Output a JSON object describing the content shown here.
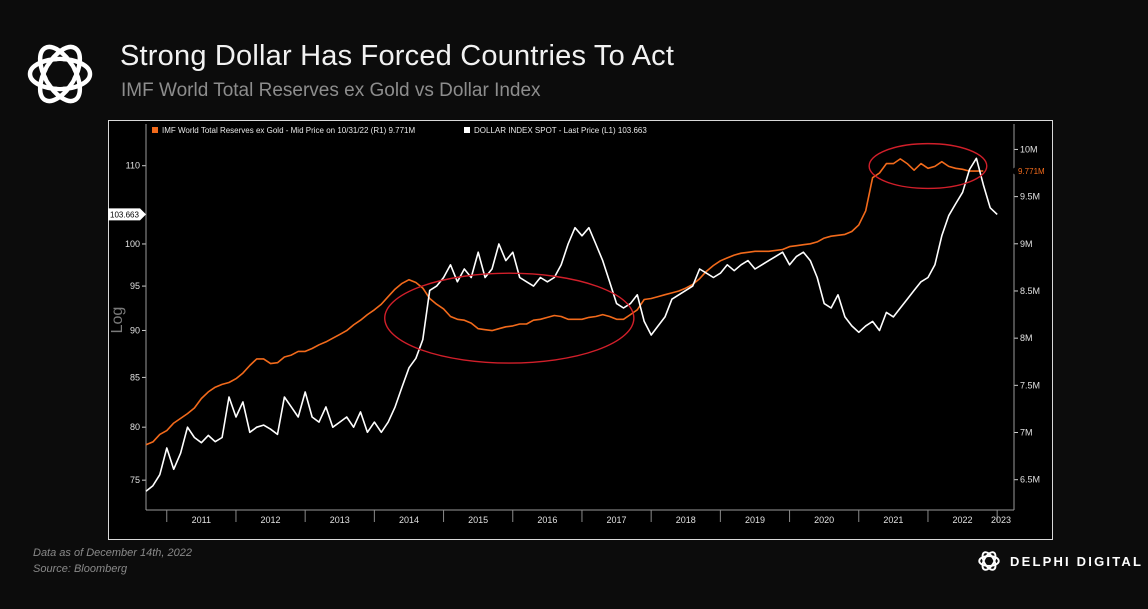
{
  "header": {
    "title": "Strong Dollar Has Forced Countries To Act",
    "subtitle": "IMF World Total Reserves ex Gold vs Dollar Index"
  },
  "footnote": {
    "date_note": "Data as of December  14th, 2022",
    "source_note": "Source: Bloomberg"
  },
  "brand": {
    "name": "DELPHI DIGITAL"
  },
  "chart_data": {
    "type": "line",
    "title": "",
    "legend_position": "top-left",
    "grid": false,
    "left_axis": {
      "label": "Log",
      "ticks": [
        75,
        80,
        85,
        90,
        95,
        100,
        110
      ],
      "tick_labels": [
        "75",
        "80",
        "85",
        "90",
        "95",
        "100",
        "110"
      ],
      "range": [
        72.5,
        113.5
      ],
      "scale": "log"
    },
    "right_axis": {
      "ticks": [
        6.5,
        7,
        7.5,
        8,
        8.5,
        9,
        9.5,
        10
      ],
      "tick_labels": [
        "6.5M",
        "7M",
        "7.5M",
        "8M",
        "8.5M",
        "9M",
        "9.5M",
        "10M"
      ],
      "range": [
        6.2,
        10.1
      ]
    },
    "x_axis": {
      "range": [
        2010.7,
        2023.2
      ],
      "years": [
        2011,
        2012,
        2013,
        2014,
        2015,
        2016,
        2017,
        2018,
        2019,
        2020,
        2021,
        2022,
        2023
      ],
      "year_labels": [
        "2011",
        "2012",
        "2013",
        "2014",
        "2015",
        "2016",
        "2017",
        "2018",
        "2019",
        "2020",
        "2021",
        "2022",
        "2023"
      ]
    },
    "series": [
      {
        "name": "IMF World Total Reserves ex Gold - Mid Price on 10/31/22 (R1) 9.771M",
        "axis": "right",
        "color": "#f26a1b",
        "last_label": "9.771M",
        "x": [
          2010.7,
          2010.8,
          2010.9,
          2011.0,
          2011.1,
          2011.2,
          2011.3,
          2011.4,
          2011.5,
          2011.6,
          2011.7,
          2011.8,
          2011.9,
          2012.0,
          2012.1,
          2012.2,
          2012.3,
          2012.4,
          2012.5,
          2012.6,
          2012.7,
          2012.8,
          2012.9,
          2013.0,
          2013.1,
          2013.2,
          2013.3,
          2013.4,
          2013.5,
          2013.6,
          2013.7,
          2013.8,
          2013.9,
          2014.0,
          2014.1,
          2014.2,
          2014.3,
          2014.4,
          2014.5,
          2014.6,
          2014.7,
          2014.8,
          2014.9,
          2015.0,
          2015.1,
          2015.2,
          2015.3,
          2015.4,
          2015.5,
          2015.6,
          2015.7,
          2015.8,
          2015.9,
          2016.0,
          2016.1,
          2016.2,
          2016.3,
          2016.4,
          2016.5,
          2016.6,
          2016.7,
          2016.8,
          2016.9,
          2017.0,
          2017.1,
          2017.2,
          2017.3,
          2017.4,
          2017.5,
          2017.6,
          2017.7,
          2017.8,
          2017.9,
          2018.0,
          2018.1,
          2018.2,
          2018.3,
          2018.4,
          2018.5,
          2018.6,
          2018.7,
          2018.8,
          2018.9,
          2019.0,
          2019.1,
          2019.2,
          2019.3,
          2019.4,
          2019.5,
          2019.6,
          2019.7,
          2019.8,
          2019.9,
          2020.0,
          2020.1,
          2020.2,
          2020.3,
          2020.4,
          2020.5,
          2020.6,
          2020.7,
          2020.8,
          2020.9,
          2021.0,
          2021.1,
          2021.2,
          2021.3,
          2021.4,
          2021.5,
          2021.6,
          2021.7,
          2021.8,
          2021.9,
          2022.0,
          2022.1,
          2022.2,
          2022.3,
          2022.4,
          2022.5,
          2022.6,
          2022.7,
          2022.8
        ],
        "values": [
          6.87,
          6.9,
          6.98,
          7.02,
          7.1,
          7.15,
          7.2,
          7.26,
          7.36,
          7.43,
          7.48,
          7.51,
          7.53,
          7.57,
          7.63,
          7.71,
          7.78,
          7.78,
          7.73,
          7.74,
          7.8,
          7.82,
          7.86,
          7.86,
          7.89,
          7.93,
          7.96,
          8.0,
          8.04,
          8.08,
          8.14,
          8.19,
          8.25,
          8.3,
          8.36,
          8.44,
          8.52,
          8.58,
          8.62,
          8.59,
          8.53,
          8.42,
          8.36,
          8.31,
          8.23,
          8.2,
          8.19,
          8.16,
          8.1,
          8.09,
          8.08,
          8.1,
          8.12,
          8.13,
          8.15,
          8.15,
          8.19,
          8.2,
          8.22,
          8.24,
          8.23,
          8.2,
          8.2,
          8.2,
          8.22,
          8.23,
          8.25,
          8.23,
          8.2,
          8.2,
          8.25,
          8.3,
          8.41,
          8.42,
          8.44,
          8.46,
          8.48,
          8.5,
          8.53,
          8.57,
          8.63,
          8.71,
          8.77,
          8.82,
          8.85,
          8.88,
          8.9,
          8.91,
          8.92,
          8.92,
          8.92,
          8.93,
          8.94,
          8.97,
          8.98,
          8.99,
          9.0,
          9.02,
          9.06,
          9.08,
          9.09,
          9.1,
          9.13,
          9.2,
          9.35,
          9.7,
          9.75,
          9.85,
          9.85,
          9.9,
          9.85,
          9.78,
          9.85,
          9.8,
          9.82,
          9.87,
          9.82,
          9.8,
          9.79,
          9.77,
          9.77,
          9.771
        ]
      },
      {
        "name": "DOLLAR INDEX SPOT - Last Price (L1) 103.663",
        "axis": "left",
        "color": "#ffffff",
        "last_label": "103.663",
        "x": [
          2010.7,
          2010.8,
          2010.9,
          2011.0,
          2011.1,
          2011.2,
          2011.3,
          2011.4,
          2011.5,
          2011.6,
          2011.7,
          2011.8,
          2011.9,
          2012.0,
          2012.1,
          2012.2,
          2012.3,
          2012.4,
          2012.5,
          2012.6,
          2012.7,
          2012.8,
          2012.9,
          2013.0,
          2013.1,
          2013.2,
          2013.3,
          2013.4,
          2013.5,
          2013.6,
          2013.7,
          2013.8,
          2013.9,
          2014.0,
          2014.1,
          2014.2,
          2014.3,
          2014.4,
          2014.5,
          2014.6,
          2014.7,
          2014.8,
          2014.9,
          2015.0,
          2015.1,
          2015.2,
          2015.3,
          2015.4,
          2015.5,
          2015.6,
          2015.7,
          2015.8,
          2015.9,
          2016.0,
          2016.1,
          2016.2,
          2016.3,
          2016.4,
          2016.5,
          2016.6,
          2016.7,
          2016.8,
          2016.9,
          2017.0,
          2017.1,
          2017.2,
          2017.3,
          2017.4,
          2017.5,
          2017.6,
          2017.7,
          2017.8,
          2017.9,
          2018.0,
          2018.1,
          2018.2,
          2018.3,
          2018.4,
          2018.5,
          2018.6,
          2018.7,
          2018.8,
          2018.9,
          2019.0,
          2019.1,
          2019.2,
          2019.3,
          2019.4,
          2019.5,
          2019.6,
          2019.7,
          2019.8,
          2019.9,
          2020.0,
          2020.1,
          2020.2,
          2020.3,
          2020.4,
          2020.5,
          2020.6,
          2020.7,
          2020.8,
          2020.9,
          2021.0,
          2021.1,
          2021.2,
          2021.3,
          2021.4,
          2021.5,
          2021.6,
          2021.7,
          2021.8,
          2021.9,
          2022.0,
          2022.1,
          2022.2,
          2022.3,
          2022.4,
          2022.5,
          2022.6,
          2022.7,
          2022.8,
          2022.9,
          2023.0
        ],
        "values": [
          74.0,
          74.5,
          75.5,
          78.0,
          76.0,
          77.5,
          80.0,
          79.0,
          78.5,
          79.2,
          78.6,
          79.0,
          83.0,
          81.0,
          82.5,
          79.5,
          80.0,
          80.2,
          79.8,
          79.3,
          83.0,
          82.0,
          81.0,
          83.5,
          81.0,
          80.5,
          82.0,
          80.0,
          80.5,
          81.0,
          80.0,
          81.5,
          79.5,
          80.5,
          79.5,
          80.5,
          82.0,
          84.0,
          86.0,
          87.0,
          89.0,
          94.5,
          95.0,
          96.0,
          97.5,
          95.5,
          97.0,
          96.0,
          99.0,
          96.0,
          97.0,
          100.0,
          98.0,
          99.0,
          96.0,
          95.5,
          95.0,
          96.0,
          95.5,
          96.0,
          97.5,
          100.0,
          102.0,
          101.0,
          102.0,
          100.0,
          98.0,
          95.5,
          93.0,
          92.5,
          93.0,
          94.0,
          91.0,
          89.5,
          90.5,
          91.5,
          93.5,
          94.0,
          94.5,
          95.0,
          97.0,
          96.5,
          96.0,
          96.5,
          97.5,
          96.8,
          97.5,
          98.0,
          97.0,
          97.5,
          98.0,
          98.5,
          99.0,
          97.5,
          98.5,
          99.0,
          98.0,
          96.0,
          93.0,
          92.5,
          94.0,
          91.5,
          90.5,
          89.8,
          90.5,
          91.0,
          90.0,
          92.0,
          91.5,
          92.5,
          93.5,
          94.5,
          95.5,
          96.0,
          97.5,
          101.0,
          103.5,
          105.0,
          106.5,
          109.5,
          111.0,
          107.5,
          104.5,
          103.663
        ]
      }
    ],
    "annotations": [
      {
        "type": "ellipse",
        "color": "#d11f2a",
        "x_range": [
          2014.15,
          2017.75
        ],
        "axis": "left",
        "y_range": [
          86.5,
          96.5
        ]
      },
      {
        "type": "ellipse",
        "color": "#d11f2a",
        "x_range": [
          2021.15,
          2022.85
        ],
        "axis": "left",
        "y_range": [
          107.0,
          113.0
        ]
      }
    ]
  }
}
